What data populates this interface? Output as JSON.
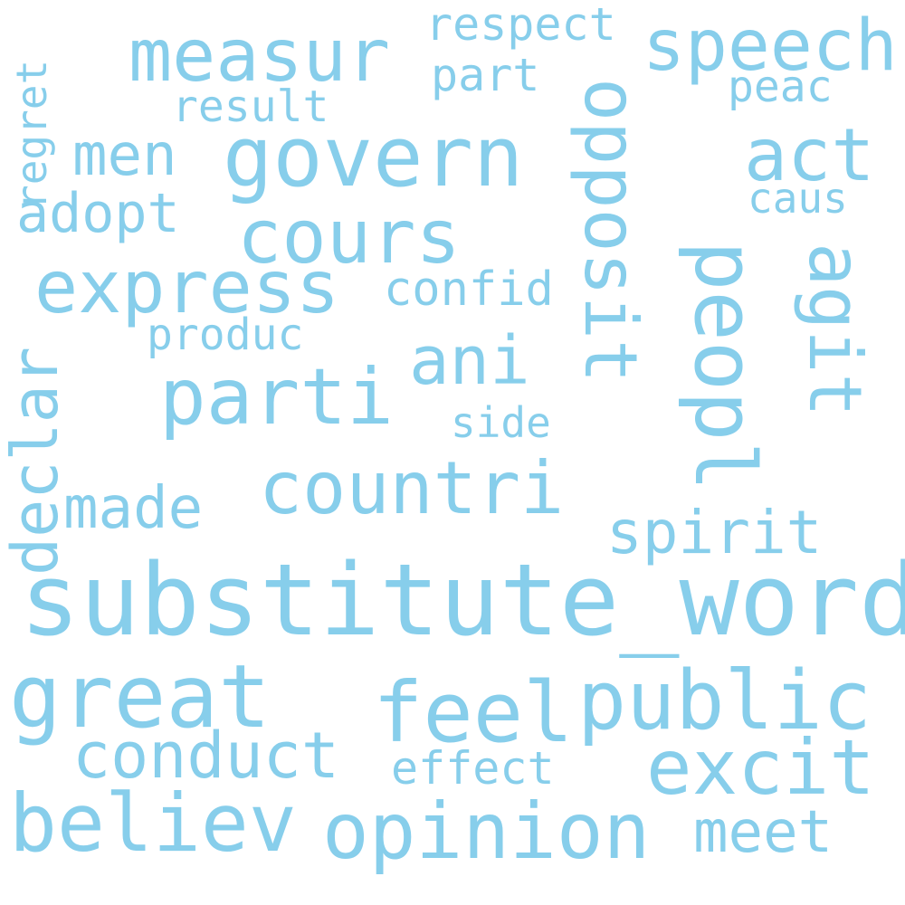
{
  "word_color": "#87ceeb",
  "background": "#ffffff",
  "words": {
    "substitute_word": "substitute_word",
    "feel": "feel",
    "public": "public",
    "great": "great",
    "believ": "believ",
    "opinion": "opinion",
    "countri": "countri",
    "parti": "parti",
    "govern": "govern",
    "peopl": "peopl",
    "oppos": "opposit",
    "express": "express",
    "cours": "cours",
    "measur": "measur",
    "speech": "speech",
    "act": "act",
    "excit": "excit",
    "conduct": "conduct",
    "agit": "agit",
    "declar": "declar",
    "ani": "ani",
    "spirit": "spirit",
    "meet": "meet",
    "made": "made",
    "men": "men",
    "adopt": "adopt",
    "confid": "confid",
    "regret": "regret",
    "effect": "effect",
    "respect": "respect",
    "part": "part",
    "result": "result",
    "peac": "peac",
    "caus": "caus",
    "produc": "produc",
    "side": "side"
  }
}
